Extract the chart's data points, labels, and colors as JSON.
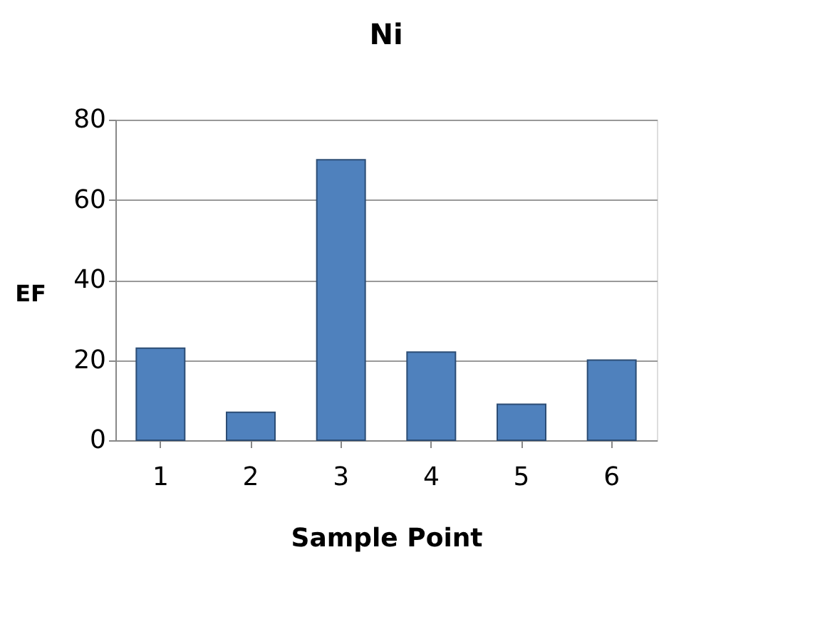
{
  "chart_data": {
    "type": "bar",
    "title": "Ni",
    "xlabel": "Sample Point",
    "ylabel": "EF",
    "categories": [
      "1",
      "2",
      "3",
      "4",
      "5",
      "6"
    ],
    "values": [
      23,
      7,
      70,
      22,
      9,
      20
    ],
    "color": "#4f81bd",
    "ylim": [
      0,
      80
    ],
    "yticks": [
      0,
      20,
      40,
      60,
      80
    ],
    "grid": "y"
  }
}
